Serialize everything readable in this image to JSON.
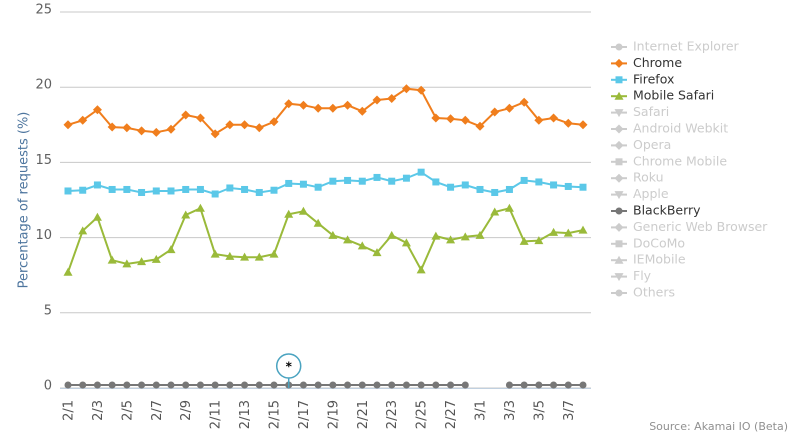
{
  "chart_data": {
    "type": "line",
    "y_label": "Percentage of requests (%)",
    "source": "Source: Akamai IO (Beta)",
    "annotations": [
      "*"
    ],
    "categories": [
      "2/1",
      null,
      "2/3",
      null,
      "2/5",
      null,
      "2/7",
      null,
      "2/9",
      null,
      "2/11",
      null,
      "2/13",
      null,
      "2/15",
      null,
      "2/17",
      null,
      "2/19",
      null,
      "2/21",
      null,
      "2/23",
      null,
      "2/25",
      null,
      "2/27",
      null,
      "3/1",
      null,
      "3/3",
      null,
      "3/5",
      null,
      "3/7",
      null
    ],
    "ylim": [
      0,
      25
    ],
    "yticks": [
      0,
      5,
      10,
      15,
      20,
      25
    ],
    "grid": true,
    "legend": "right",
    "series": [
      {
        "name": "Internet Explorer",
        "color": "#cccccc",
        "marker": "circle",
        "visible": false
      },
      {
        "name": "Chrome",
        "color": "#f07e1d",
        "marker": "diamond",
        "visible": true,
        "values": [
          17.5,
          17.8,
          18.5,
          17.35,
          17.3,
          17.1,
          17.0,
          17.2,
          18.15,
          17.95,
          16.9,
          17.5,
          17.5,
          17.3,
          17.7,
          18.9,
          18.8,
          18.6,
          18.6,
          18.8,
          18.4,
          19.15,
          19.25,
          19.9,
          19.8,
          17.95,
          17.9,
          17.8,
          17.4,
          18.35,
          18.6,
          19.0,
          17.8,
          17.95,
          17.6,
          17.5
        ]
      },
      {
        "name": "Firefox",
        "color": "#5bc8e8",
        "marker": "square",
        "visible": true,
        "values": [
          13.1,
          13.15,
          13.5,
          13.2,
          13.2,
          13.0,
          13.1,
          13.1,
          13.2,
          13.2,
          12.9,
          13.3,
          13.2,
          13.0,
          13.15,
          13.6,
          13.55,
          13.35,
          13.75,
          13.8,
          13.75,
          14.0,
          13.75,
          13.95,
          14.35,
          13.7,
          13.35,
          13.5,
          13.2,
          13.0,
          13.2,
          13.8,
          13.7,
          13.5,
          13.4,
          13.35
        ]
      },
      {
        "name": "Mobile Safari",
        "color": "#9aba3a",
        "marker": "triangle",
        "visible": true,
        "values": [
          7.7,
          10.45,
          11.35,
          8.5,
          8.25,
          8.4,
          8.55,
          9.2,
          11.5,
          11.95,
          8.9,
          8.75,
          8.7,
          8.7,
          8.9,
          11.55,
          11.75,
          10.95,
          10.15,
          9.85,
          9.45,
          9.0,
          10.15,
          9.65,
          7.85,
          10.1,
          9.85,
          10.05,
          10.15,
          11.7,
          11.95,
          9.75,
          9.8,
          10.35,
          10.3,
          10.5
        ]
      },
      {
        "name": "Safari",
        "color": "#cccccc",
        "marker": "triangle-down",
        "visible": false
      },
      {
        "name": "Android Webkit",
        "color": "#cccccc",
        "marker": "diamond",
        "visible": false
      },
      {
        "name": "Opera",
        "color": "#cccccc",
        "marker": "diamond",
        "visible": false
      },
      {
        "name": "Chrome Mobile",
        "color": "#cccccc",
        "marker": "square",
        "visible": false
      },
      {
        "name": "Roku",
        "color": "#cccccc",
        "marker": "diamond",
        "visible": false
      },
      {
        "name": "Apple",
        "color": "#cccccc",
        "marker": "triangle-down",
        "visible": false
      },
      {
        "name": "BlackBerry",
        "color": "#777777",
        "marker": "circle",
        "visible": true,
        "values": [
          0.2,
          0.2,
          0.2,
          0.2,
          0.2,
          0.2,
          0.2,
          0.2,
          0.2,
          0.2,
          0.2,
          0.2,
          0.2,
          0.2,
          0.2,
          0.2,
          0.2,
          0.2,
          0.2,
          0.2,
          0.2,
          0.2,
          0.2,
          0.2,
          0.2,
          0.2,
          0.2,
          0.2,
          null,
          null,
          0.2,
          0.2,
          0.2,
          0.2,
          0.2,
          0.2
        ]
      },
      {
        "name": "Generic Web Browser",
        "color": "#cccccc",
        "marker": "diamond",
        "visible": false
      },
      {
        "name": "DoCoMo",
        "color": "#cccccc",
        "marker": "square",
        "visible": false
      },
      {
        "name": "IEMobile",
        "color": "#cccccc",
        "marker": "triangle",
        "visible": false
      },
      {
        "name": "Fly",
        "color": "#cccccc",
        "marker": "triangle-down",
        "visible": false
      },
      {
        "name": "Others",
        "color": "#cccccc",
        "marker": "circle",
        "visible": false
      }
    ]
  }
}
